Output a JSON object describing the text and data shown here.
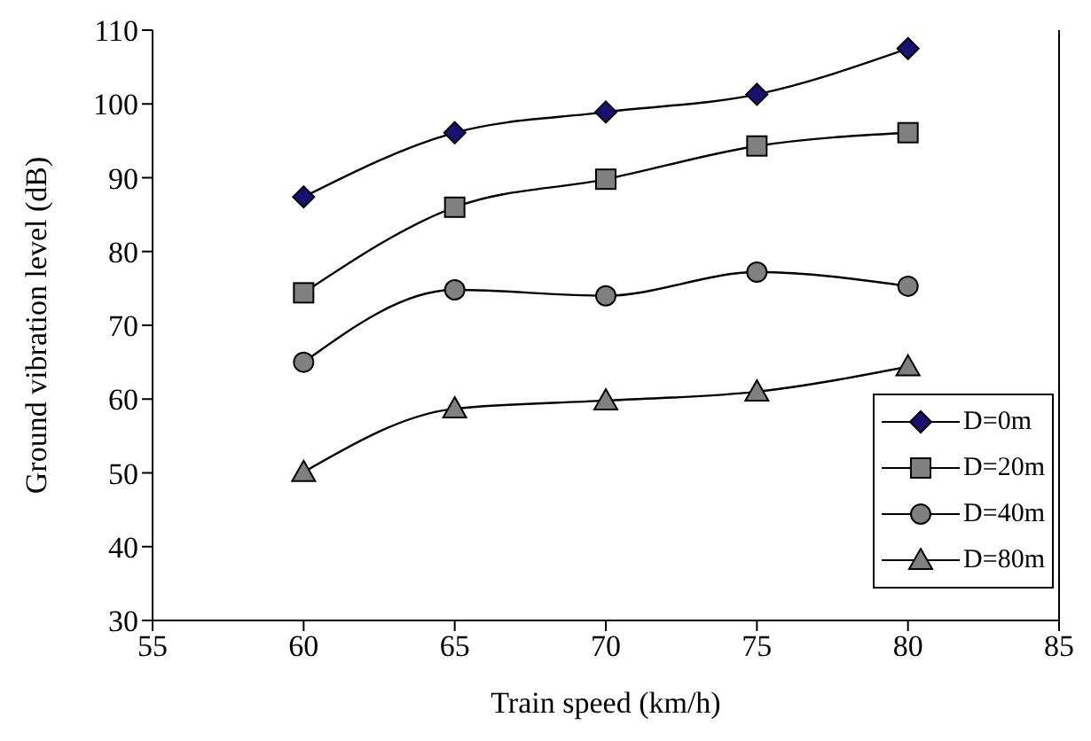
{
  "chart_data": {
    "type": "line",
    "xlabel": "Train speed (km/h)",
    "ylabel": "Ground vibration level (dB)",
    "x": [
      60,
      65,
      70,
      75,
      80
    ],
    "series": [
      {
        "name": "D=0m",
        "color": "#1a1070",
        "marker": "diamond",
        "values": [
          87.4,
          96.1,
          98.9,
          101.3,
          107.5
        ]
      },
      {
        "name": "D=20m",
        "color": "#808080",
        "marker": "square",
        "values": [
          74.4,
          86.0,
          89.8,
          94.3,
          96.1
        ]
      },
      {
        "name": "D=40m",
        "color": "#808080",
        "marker": "circle",
        "values": [
          65.0,
          74.8,
          74.0,
          77.2,
          75.3
        ]
      },
      {
        "name": "D=80m",
        "color": "#808080",
        "marker": "triangle",
        "values": [
          50.1,
          58.7,
          59.8,
          61.0,
          64.4
        ]
      }
    ],
    "xlim": [
      55,
      85
    ],
    "xticks": [
      55,
      60,
      65,
      70,
      75,
      80,
      85
    ],
    "ylim": [
      30,
      110
    ],
    "yticks": [
      30,
      40,
      50,
      60,
      70,
      80,
      90,
      100,
      110
    ],
    "grid": false,
    "legend": "bottom right",
    "line_style": "solid"
  }
}
